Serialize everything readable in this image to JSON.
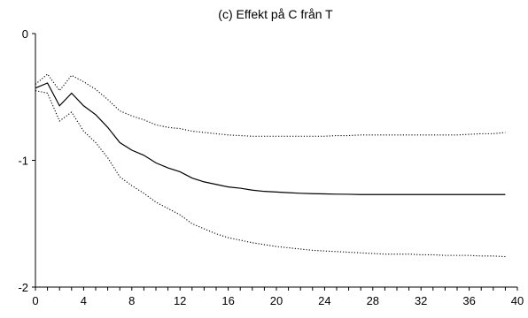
{
  "chart_data": {
    "type": "line",
    "title": "(c) Effekt på C från T",
    "xlabel": "",
    "ylabel": "",
    "xlim": [
      0,
      40
    ],
    "ylim": [
      -2,
      0
    ],
    "xticks": [
      0,
      4,
      8,
      12,
      16,
      20,
      24,
      28,
      32,
      36,
      40
    ],
    "yticks": [
      0,
      -1,
      -2
    ],
    "grid": false,
    "legend": "none",
    "series": [
      {
        "style": "solid",
        "color": "#000000",
        "x": [
          0,
          1,
          2,
          3,
          4,
          5,
          6,
          7,
          8,
          9,
          10,
          11,
          12,
          13,
          14,
          15,
          16,
          17,
          18,
          19,
          20,
          21,
          22,
          23,
          24,
          25,
          26,
          27,
          28,
          29,
          30,
          31,
          32,
          33,
          34,
          35,
          36,
          37,
          38,
          39
        ],
        "values": [
          -0.43,
          -0.39,
          -0.57,
          -0.47,
          -0.57,
          -0.64,
          -0.74,
          -0.86,
          -0.92,
          -0.96,
          -1.02,
          -1.06,
          -1.09,
          -1.14,
          -1.17,
          -1.19,
          -1.21,
          -1.22,
          -1.235,
          -1.245,
          -1.25,
          -1.255,
          -1.26,
          -1.263,
          -1.265,
          -1.267,
          -1.268,
          -1.27,
          -1.27,
          -1.27,
          -1.27,
          -1.27,
          -1.27,
          -1.27,
          -1.27,
          -1.27,
          -1.27,
          -1.27,
          -1.27,
          -1.27
        ]
      },
      {
        "style": "dotted",
        "color": "#000000",
        "x": [
          0,
          1,
          2,
          3,
          4,
          5,
          6,
          7,
          8,
          9,
          10,
          11,
          12,
          13,
          14,
          15,
          16,
          17,
          18,
          19,
          20,
          21,
          22,
          23,
          24,
          25,
          26,
          27,
          28,
          29,
          30,
          31,
          32,
          33,
          34,
          35,
          36,
          37,
          38,
          39
        ],
        "values": [
          -0.4,
          -0.32,
          -0.45,
          -0.33,
          -0.38,
          -0.44,
          -0.52,
          -0.61,
          -0.65,
          -0.68,
          -0.72,
          -0.74,
          -0.75,
          -0.77,
          -0.78,
          -0.79,
          -0.8,
          -0.805,
          -0.81,
          -0.81,
          -0.81,
          -0.81,
          -0.81,
          -0.81,
          -0.81,
          -0.805,
          -0.805,
          -0.8,
          -0.8,
          -0.8,
          -0.8,
          -0.8,
          -0.8,
          -0.8,
          -0.8,
          -0.8,
          -0.795,
          -0.79,
          -0.79,
          -0.78
        ]
      },
      {
        "style": "dotted",
        "color": "#000000",
        "x": [
          0,
          1,
          2,
          3,
          4,
          5,
          6,
          7,
          8,
          9,
          10,
          11,
          12,
          13,
          14,
          15,
          16,
          17,
          18,
          19,
          20,
          21,
          22,
          23,
          24,
          25,
          26,
          27,
          28,
          29,
          30,
          31,
          32,
          33,
          34,
          35,
          36,
          37,
          38,
          39
        ],
        "values": [
          -0.45,
          -0.47,
          -0.69,
          -0.62,
          -0.77,
          -0.86,
          -0.98,
          -1.13,
          -1.2,
          -1.26,
          -1.33,
          -1.38,
          -1.43,
          -1.5,
          -1.54,
          -1.58,
          -1.61,
          -1.63,
          -1.65,
          -1.665,
          -1.68,
          -1.69,
          -1.7,
          -1.71,
          -1.715,
          -1.72,
          -1.725,
          -1.73,
          -1.735,
          -1.74,
          -1.74,
          -1.74,
          -1.745,
          -1.745,
          -1.75,
          -1.75,
          -1.75,
          -1.755,
          -1.755,
          -1.76
        ]
      }
    ]
  }
}
